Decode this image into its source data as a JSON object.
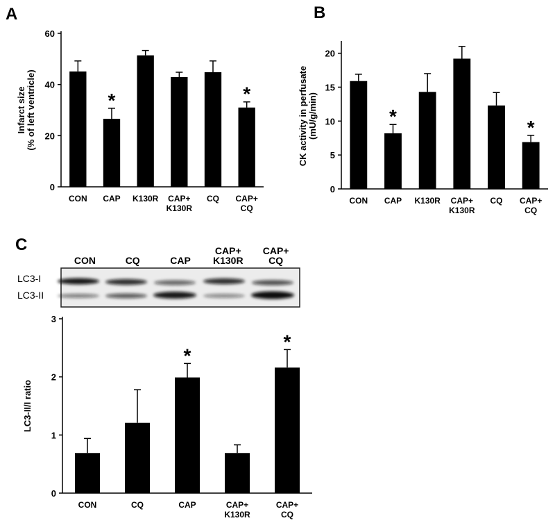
{
  "chart_data": [
    {
      "type": "bar",
      "panel": "A",
      "ylabel": "Infarct size\n(% of left ventricle)",
      "categories": [
        "CON",
        "CAP",
        "K130R",
        "CAP+\nK130R",
        "CQ",
        "CAP+\nCQ"
      ],
      "values": [
        45.1,
        26.6,
        51.4,
        42.9,
        44.8,
        31.0
      ],
      "errors": [
        4.1,
        4.1,
        1.9,
        1.9,
        4.4,
        2.2
      ],
      "markers": [
        null,
        "*",
        null,
        null,
        null,
        "*"
      ],
      "color": "#000000",
      "ylim": [
        0,
        60
      ],
      "yticks": [
        0,
        20,
        40,
        60
      ],
      "grid": false
    },
    {
      "type": "bar",
      "panel": "B",
      "ylabel": "CK activity in perfusate\n(mU/g/min)",
      "categories": [
        "CON",
        "CAP",
        "K130R",
        "CAP+\nK130R",
        "CQ",
        "CAP+\nCQ"
      ],
      "values": [
        15.9,
        8.2,
        14.3,
        19.2,
        12.3,
        6.9
      ],
      "errors": [
        1.0,
        1.3,
        2.7,
        1.8,
        1.9,
        1.0
      ],
      "markers": [
        null,
        "*",
        null,
        null,
        null,
        "*"
      ],
      "color": "#000000",
      "ylim": [
        0,
        21.5
      ],
      "yticks": [
        0,
        5,
        10,
        15,
        20
      ],
      "grid": false
    },
    {
      "type": "bar",
      "panel": "C",
      "ylabel": "LC3-II/I ratio",
      "blot": {
        "lanes": [
          "CON",
          "CQ",
          "CAP",
          "CAP+\nK130R",
          "CAP+\nCQ"
        ],
        "bands": [
          "LC3-I",
          "LC3-II"
        ]
      },
      "categories": [
        "CON",
        "CQ",
        "CAP",
        "CAP+\nK130R",
        "CAP+\nCQ"
      ],
      "values": [
        0.69,
        1.21,
        1.99,
        0.69,
        2.16
      ],
      "errors": [
        0.25,
        0.57,
        0.24,
        0.14,
        0.31
      ],
      "markers": [
        null,
        null,
        "*",
        null,
        "*"
      ],
      "color": "#000000",
      "ylim": [
        0,
        3
      ],
      "yticks": [
        0,
        1,
        2,
        3
      ],
      "grid": false
    }
  ]
}
